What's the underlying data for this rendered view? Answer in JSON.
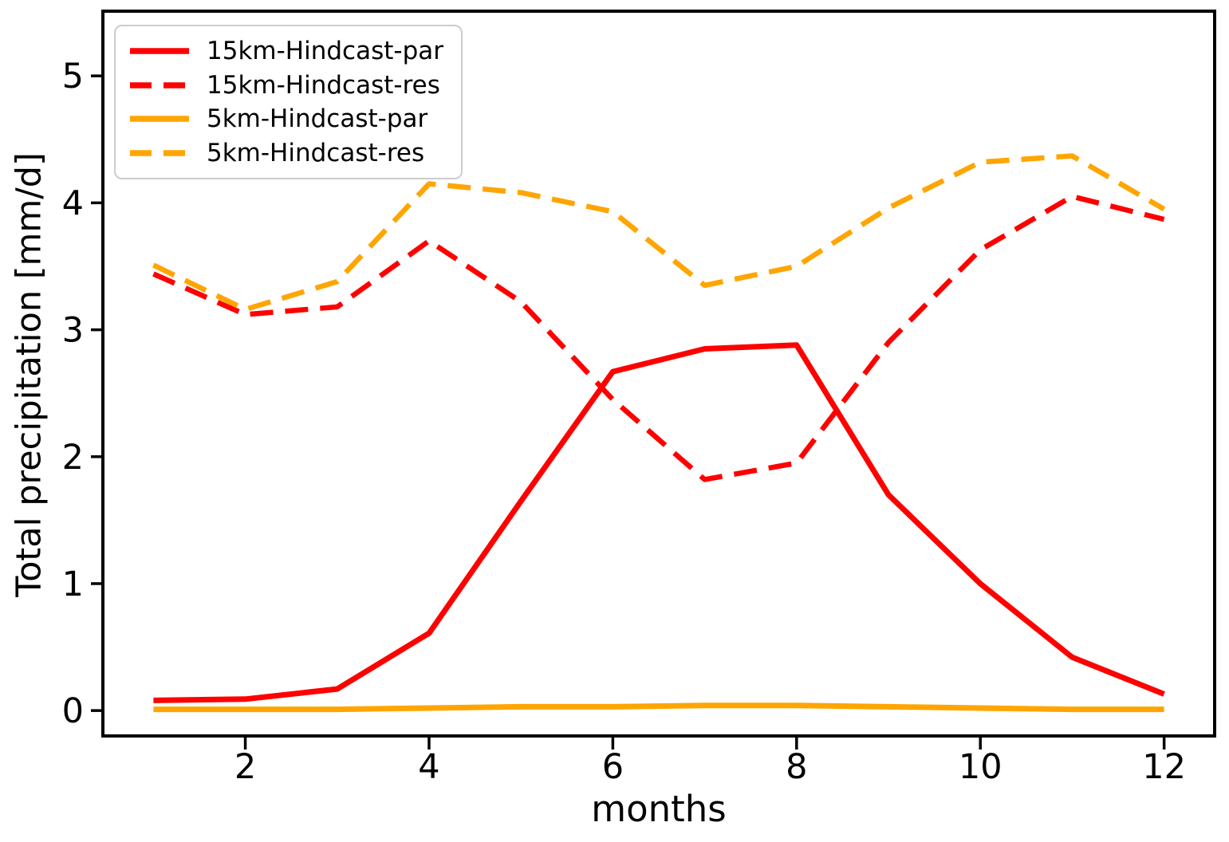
{
  "chart_data": {
    "type": "line",
    "title": "",
    "xlabel": "months",
    "ylabel": "Total precipitation [mm/d]",
    "x": [
      1,
      2,
      3,
      4,
      5,
      6,
      7,
      8,
      9,
      10,
      11,
      12
    ],
    "xticks": [
      2,
      4,
      6,
      8,
      10,
      12
    ],
    "yticks": [
      0,
      1,
      2,
      3,
      4,
      5
    ],
    "xlim": [
      0.45,
      12.55
    ],
    "ylim": [
      -0.2,
      5.51
    ],
    "grid": false,
    "legend_position": "upper left",
    "background_color": "#ffffff",
    "spine_color": "#000000",
    "legend_border_color": "#cccccc",
    "series": [
      {
        "name": "15km-Hindcast-par",
        "color": "#ff0000",
        "style": "solid",
        "values": [
          0.08,
          0.09,
          0.17,
          0.61,
          1.65,
          2.67,
          2.85,
          2.88,
          1.7,
          1.0,
          0.42,
          0.13
        ]
      },
      {
        "name": "15km-Hindcast-res",
        "color": "#ff0000",
        "style": "dashed",
        "values": [
          3.44,
          3.12,
          3.18,
          3.7,
          3.22,
          2.45,
          1.82,
          1.95,
          2.9,
          3.63,
          4.05,
          3.87
        ]
      },
      {
        "name": "5km-Hindcast-par",
        "color": "#ffa500",
        "style": "solid",
        "values": [
          0.01,
          0.01,
          0.01,
          0.02,
          0.03,
          0.03,
          0.04,
          0.04,
          0.03,
          0.02,
          0.01,
          0.01
        ]
      },
      {
        "name": "5km-Hindcast-res",
        "color": "#ffa500",
        "style": "dashed",
        "values": [
          3.51,
          3.16,
          3.38,
          4.15,
          4.08,
          3.93,
          3.35,
          3.5,
          3.96,
          4.32,
          4.37,
          3.95
        ]
      }
    ]
  }
}
